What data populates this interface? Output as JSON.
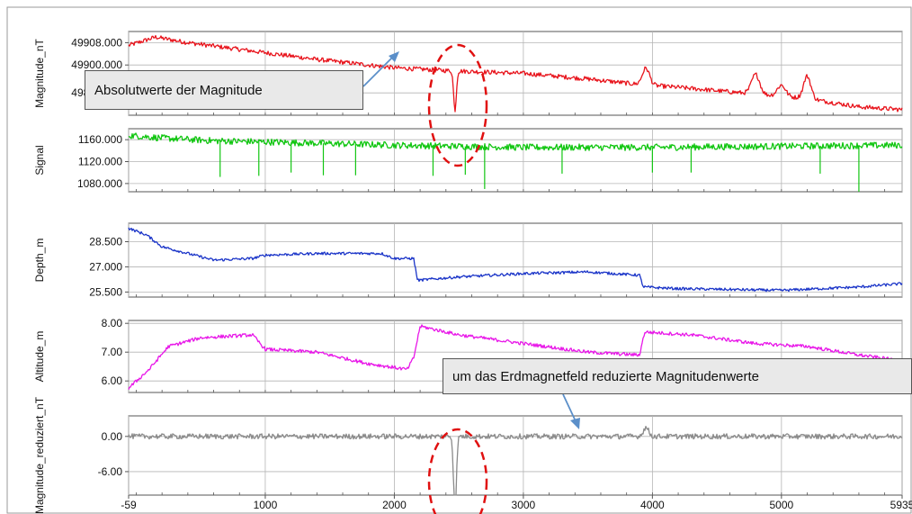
{
  "chart_data": {
    "type": "line",
    "x_axis": {
      "range": [
        -59,
        5935
      ],
      "tick_labels": [
        "-59",
        "1000",
        "2000",
        "3000",
        "4000",
        "5000",
        "5935"
      ],
      "tick_values": [
        -59,
        1000,
        2000,
        3000,
        4000,
        5000,
        5935
      ]
    },
    "grid": true,
    "panels": [
      {
        "ylabel": "Magnitude_nT",
        "color": "#e8141c",
        "ylim": [
          49882,
          49912
        ],
        "y_ticks": [
          49908,
          49900,
          49890
        ],
        "y_tick_labels": [
          "49908.000",
          "49900.000",
          "49890.000"
        ],
        "anchors": [
          [
            -59,
            49907
          ],
          [
            150,
            49910
          ],
          [
            400,
            49908
          ],
          [
            900,
            49905
          ],
          [
            1400,
            49902
          ],
          [
            2000,
            49899
          ],
          [
            2400,
            49898
          ],
          [
            3000,
            49897
          ],
          [
            3500,
            49895
          ],
          [
            3900,
            49893
          ],
          [
            4200,
            49892
          ],
          [
            4700,
            49890
          ],
          [
            5200,
            49888
          ],
          [
            5600,
            49885
          ],
          [
            5935,
            49884
          ]
        ],
        "features": [
          [
            2470,
            -14,
            15
          ],
          [
            3950,
            6,
            40
          ],
          [
            4800,
            7,
            45
          ],
          [
            5000,
            4,
            45
          ],
          [
            5200,
            8,
            40
          ]
        ],
        "noise": 0.8,
        "spikes": []
      },
      {
        "ylabel": "Signal",
        "color": "#11c611",
        "ylim": [
          1065,
          1180
        ],
        "y_ticks": [
          1160,
          1120,
          1080
        ],
        "y_tick_labels": [
          "1160.000",
          "1120.000",
          "1080.000"
        ],
        "anchors": [
          [
            -59,
            1168
          ],
          [
            200,
            1163
          ],
          [
            600,
            1158
          ],
          [
            1000,
            1156
          ],
          [
            2000,
            1150
          ],
          [
            3000,
            1146
          ],
          [
            4000,
            1146
          ],
          [
            5000,
            1148
          ],
          [
            5935,
            1150
          ]
        ],
        "features": [],
        "noise": 6,
        "spikes": [
          [
            2700,
            1070
          ],
          [
            5600,
            1065
          ],
          [
            650,
            1092
          ],
          [
            1700,
            1095
          ],
          [
            1200,
            1100
          ],
          [
            3300,
            1098
          ],
          [
            4300,
            1100
          ],
          [
            5300,
            1098
          ],
          [
            1450,
            1095
          ],
          [
            2300,
            1094
          ],
          [
            950,
            1094
          ],
          [
            4000,
            1100
          ],
          [
            2550,
            1096
          ]
        ]
      },
      {
        "ylabel": "Depth_m",
        "color": "#1a34c8",
        "ylim": [
          25.2,
          29.6
        ],
        "y_ticks": [
          28.5,
          27.0,
          25.5
        ],
        "y_tick_labels": [
          "28.500",
          "27.000",
          "25.500"
        ],
        "anchors": [
          [
            -59,
            29.3
          ],
          [
            80,
            28.9
          ],
          [
            200,
            28.2
          ],
          [
            400,
            27.8
          ],
          [
            600,
            27.4
          ],
          [
            900,
            27.5
          ],
          [
            1000,
            27.7
          ],
          [
            1400,
            27.8
          ],
          [
            1900,
            27.8
          ],
          [
            2000,
            27.5
          ],
          [
            2150,
            27.5
          ],
          [
            2180,
            26.2
          ],
          [
            2500,
            26.4
          ],
          [
            3000,
            26.6
          ],
          [
            3500,
            26.7
          ],
          [
            3900,
            26.5
          ],
          [
            3930,
            25.8
          ],
          [
            4200,
            25.7
          ],
          [
            5000,
            25.6
          ],
          [
            5600,
            25.8
          ],
          [
            5935,
            26.0
          ]
        ],
        "features": [],
        "noise": 0.08,
        "spikes": []
      },
      {
        "ylabel": "Altitude_m",
        "color": "#e816e8",
        "ylim": [
          5.6,
          8.1
        ],
        "y_ticks": [
          8.0,
          7.0,
          6.0
        ],
        "y_tick_labels": [
          "8.00",
          "7.00",
          "6.00"
        ],
        "anchors": [
          [
            -59,
            5.75
          ],
          [
            100,
            6.4
          ],
          [
            250,
            7.2
          ],
          [
            500,
            7.5
          ],
          [
            900,
            7.6
          ],
          [
            1000,
            7.1
          ],
          [
            1400,
            7.0
          ],
          [
            1800,
            6.6
          ],
          [
            2100,
            6.4
          ],
          [
            2150,
            6.8
          ],
          [
            2200,
            7.9
          ],
          [
            2500,
            7.6
          ],
          [
            3000,
            7.3
          ],
          [
            3500,
            7.0
          ],
          [
            3900,
            6.9
          ],
          [
            3940,
            7.7
          ],
          [
            4300,
            7.6
          ],
          [
            4800,
            7.3
          ],
          [
            5200,
            7.2
          ],
          [
            5600,
            6.9
          ],
          [
            5935,
            6.7
          ]
        ],
        "features": [],
        "noise": 0.06,
        "spikes": []
      },
      {
        "ylabel": "Magnitude_reduziert_nT",
        "color": "#8a8a8a",
        "ylim": [
          -10,
          3.5
        ],
        "y_ticks": [
          0.0,
          -6.0
        ],
        "y_tick_labels": [
          "0.00",
          "-6.00"
        ],
        "anchors": [
          [
            -59,
            0
          ],
          [
            5935,
            0
          ]
        ],
        "features": [
          [
            2470,
            -14,
            15
          ],
          [
            3950,
            1.5,
            30
          ]
        ],
        "noise": 0.45,
        "spikes": []
      }
    ],
    "annotations": [
      "Absolutwerte der Magnitude",
      "um das Erdmagnetfeld reduzierte Magnitudenwerte"
    ]
  }
}
